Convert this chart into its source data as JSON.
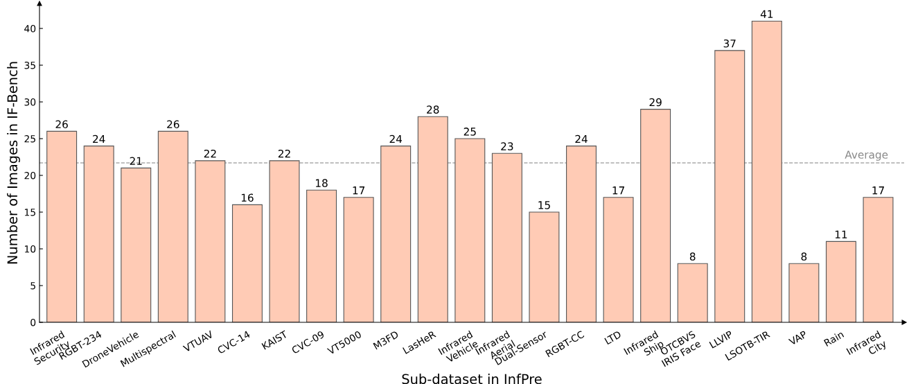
{
  "chart_data": {
    "type": "bar",
    "xlabel": "Sub-dataset in InfPre",
    "ylabel": "Number of Images in IF-Bench",
    "categories": [
      "Infrared\nSecurity",
      "RGBT-234",
      "DroneVehicle",
      "Multispectral",
      "VTUAV",
      "CVC-14",
      "KAIST",
      "CVC-09",
      "VT5000",
      "M3FD",
      "LasHeR",
      "Infrared\nVehicle",
      "Infrared\nAerial",
      "Dual-Sensor",
      "RGBT-CC",
      "LTD",
      "Infrared\nShip",
      "OTCBVS\nIRIS Face",
      "LLVIP",
      "LSOTB-TIR",
      "VAP",
      "Rain",
      "Infrared\nCity"
    ],
    "values": [
      26,
      24,
      21,
      26,
      22,
      16,
      22,
      18,
      17,
      24,
      28,
      25,
      23,
      15,
      24,
      17,
      29,
      8,
      37,
      41,
      8,
      11,
      17
    ],
    "color": "#ffcbb5",
    "ylim": [
      0,
      43.4
    ],
    "yticks": [
      0,
      5,
      10,
      15,
      20,
      25,
      30,
      35,
      40
    ],
    "data_labels": true,
    "grid": false,
    "legend": false,
    "ref_lines": [
      {
        "axis": "y",
        "value": 21.7,
        "label": "Average",
        "color": "#aaaaaa",
        "line_style": "dashed"
      }
    ]
  }
}
